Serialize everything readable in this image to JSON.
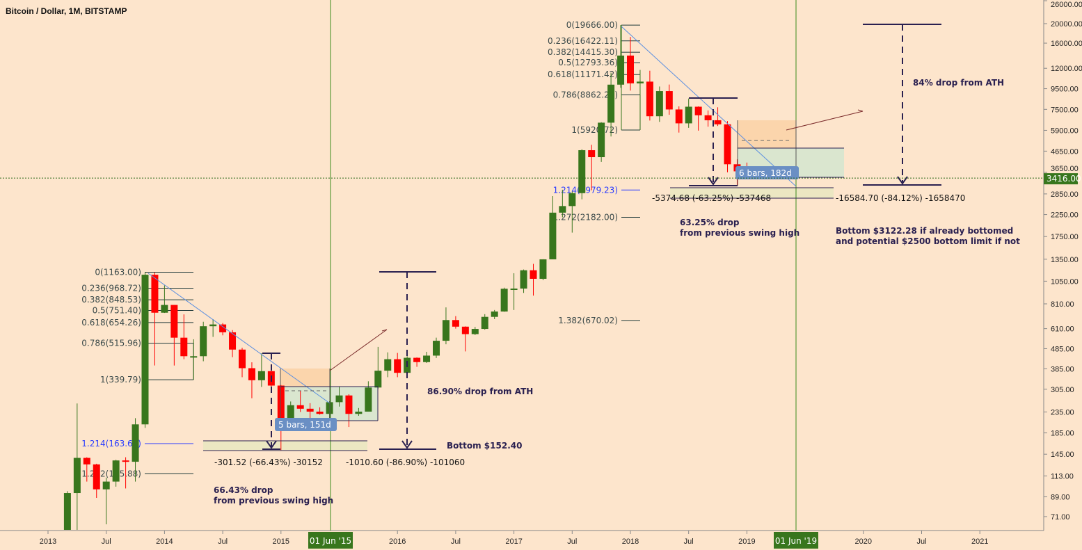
{
  "header": {
    "title": "Bitcoin / Dollar, 1M, BITSTAMP"
  },
  "chart_data": {
    "type": "candlestick",
    "title": "Bitcoin / Dollar, 1M, BITSTAMP",
    "y_scale": "log",
    "ylim": [
      60,
      27000
    ],
    "xlim": [
      "2012-11",
      "2021-12"
    ],
    "grid": false,
    "colors": {
      "up": "#38761d",
      "down": "#ff0000",
      "background": "#fde5cc",
      "price_label": "#38761d",
      "marker_line": "#3a8a1a",
      "trend": "#5b8fe0",
      "bracket": "#2a2050"
    },
    "y_ticks": [
      "26000.00",
      "20000.00",
      "16000.00",
      "12000.00",
      "9500.00",
      "7500.00",
      "5900.00",
      "4650.00",
      "3650.00",
      "2850.00",
      "2250.00",
      "1750.00",
      "1350.00",
      "1050.00",
      "810.00",
      "610.00",
      "485.00",
      "385.00",
      "305.00",
      "235.00",
      "185.00",
      "145.00",
      "113.00",
      "89.00",
      "71.00"
    ],
    "x_ticks": [
      {
        "m": 0,
        "label": "2013"
      },
      {
        "m": 6,
        "label": "Jul"
      },
      {
        "m": 12,
        "label": "2014"
      },
      {
        "m": 18,
        "label": "Jul"
      },
      {
        "m": 24,
        "label": "2015"
      },
      {
        "m": 36,
        "label": "2016"
      },
      {
        "m": 42,
        "label": "Jul"
      },
      {
        "m": 48,
        "label": "2017"
      },
      {
        "m": 54,
        "label": "Jul"
      },
      {
        "m": 60,
        "label": "2018"
      },
      {
        "m": 66,
        "label": "Jul"
      },
      {
        "m": 72,
        "label": "2019"
      },
      {
        "m": 84,
        "label": "2020"
      },
      {
        "m": 90,
        "label": "Jul"
      },
      {
        "m": 96,
        "label": "2021"
      }
    ],
    "current_price": {
      "value": 3416,
      "label": "3416.00"
    },
    "vertical_markers": [
      {
        "m": 29,
        "label": "01 Jun '15"
      },
      {
        "m": 77,
        "label": "01 Jun '19"
      }
    ],
    "candles": [
      [
        "2013-03",
        34,
        95,
        33,
        93
      ],
      [
        "2013-04",
        93,
        259,
        50,
        139
      ],
      [
        "2013-05",
        139,
        140,
        106,
        129
      ],
      [
        "2013-06",
        129,
        130,
        88,
        97
      ],
      [
        "2013-07",
        97,
        111,
        65,
        106
      ],
      [
        "2013-08",
        106,
        136,
        100,
        135
      ],
      [
        "2013-09",
        135,
        140,
        98,
        133
      ],
      [
        "2013-10",
        133,
        219,
        106,
        204
      ],
      [
        "2013-11",
        204,
        1163,
        196,
        1130
      ],
      [
        "2013-12",
        1130,
        1160,
        400,
        732
      ],
      [
        "2014-01",
        732,
        1000,
        730,
        800
      ],
      [
        "2014-02",
        800,
        800,
        400,
        550
      ],
      [
        "2014-03",
        550,
        718,
        430,
        445
      ],
      [
        "2014-04",
        445,
        540,
        340,
        445
      ],
      [
        "2014-05",
        445,
        660,
        420,
        627
      ],
      [
        "2014-06",
        627,
        680,
        555,
        640
      ],
      [
        "2014-07",
        640,
        650,
        565,
        585
      ],
      [
        "2014-08",
        585,
        600,
        440,
        480
      ],
      [
        "2014-09",
        480,
        490,
        350,
        388
      ],
      [
        "2014-10",
        388,
        415,
        275,
        338
      ],
      [
        "2014-11",
        338,
        460,
        313,
        375
      ],
      [
        "2014-12",
        375,
        385,
        300,
        318
      ],
      [
        "2015-01",
        318,
        320,
        152,
        218
      ],
      [
        "2015-02",
        218,
        265,
        200,
        254
      ],
      [
        "2015-03",
        254,
        300,
        235,
        244
      ],
      [
        "2015-04",
        244,
        260,
        214,
        236
      ],
      [
        "2015-05",
        236,
        248,
        228,
        230
      ],
      [
        "2015-06",
        230,
        266,
        219,
        263
      ],
      [
        "2015-07",
        263,
        315,
        250,
        284
      ],
      [
        "2015-08",
        284,
        288,
        198,
        230
      ],
      [
        "2015-09",
        230,
        246,
        225,
        236
      ],
      [
        "2015-10",
        236,
        334,
        236,
        311
      ],
      [
        "2015-11",
        311,
        495,
        305,
        377
      ],
      [
        "2015-12",
        377,
        465,
        350,
        430
      ],
      [
        "2016-01",
        430,
        462,
        350,
        368
      ],
      [
        "2016-02",
        368,
        445,
        365,
        437
      ],
      [
        "2016-03",
        437,
        439,
        394,
        416
      ],
      [
        "2016-04",
        416,
        468,
        412,
        448
      ],
      [
        "2016-05",
        448,
        550,
        436,
        531
      ],
      [
        "2016-06",
        531,
        778,
        510,
        673
      ],
      [
        "2016-07",
        673,
        704,
        610,
        624
      ],
      [
        "2016-08",
        624,
        626,
        470,
        573
      ],
      [
        "2016-09",
        573,
        622,
        567,
        608
      ],
      [
        "2016-10",
        608,
        720,
        603,
        698
      ],
      [
        "2016-11",
        698,
        755,
        680,
        742
      ],
      [
        "2016-12",
        742,
        975,
        740,
        963
      ],
      [
        "2017-01",
        963,
        1150,
        755,
        965
      ],
      [
        "2017-02",
        965,
        1200,
        918,
        1190
      ],
      [
        "2017-03",
        1190,
        1280,
        890,
        1079
      ],
      [
        "2017-04",
        1079,
        1350,
        1062,
        1348
      ],
      [
        "2017-05",
        1348,
        2780,
        1348,
        2300
      ],
      [
        "2017-06",
        2300,
        2990,
        2180,
        2480
      ],
      [
        "2017-07",
        2480,
        2930,
        1830,
        2875
      ],
      [
        "2017-08",
        2875,
        4750,
        2680,
        4700
      ],
      [
        "2017-09",
        4700,
        5000,
        2972,
        4340
      ],
      [
        "2017-10",
        4340,
        6470,
        4110,
        6440
      ],
      [
        "2017-11",
        6440,
        11400,
        5500,
        9950
      ],
      [
        "2017-12",
        9950,
        19666,
        9600,
        13880
      ],
      [
        "2018-01",
        13880,
        17170,
        9300,
        10100
      ],
      [
        "2018-02",
        10100,
        11780,
        5920,
        10300
      ],
      [
        "2018-03",
        10300,
        11670,
        6600,
        6930
      ],
      [
        "2018-04",
        6930,
        9740,
        6500,
        9240
      ],
      [
        "2018-05",
        9240,
        9960,
        7050,
        7490
      ],
      [
        "2018-06",
        7490,
        7760,
        5750,
        6390
      ],
      [
        "2018-07",
        6390,
        8490,
        6070,
        7730
      ],
      [
        "2018-08",
        7730,
        7760,
        5880,
        7010
      ],
      [
        "2018-09",
        7010,
        7410,
        6150,
        6620
      ],
      [
        "2018-10",
        6620,
        7680,
        6200,
        6320
      ],
      [
        "2018-11",
        6320,
        6550,
        3652,
        4000
      ],
      [
        "2018-12",
        4000,
        4235,
        3122,
        3690
      ],
      [
        "2019-01",
        3690,
        4080,
        3400,
        3416
      ]
    ],
    "fib_2013": [
      {
        "price": 1163.0,
        "label": "0(1163.00)"
      },
      {
        "price": 968.72,
        "label": "0.236(968.72)"
      },
      {
        "price": 848.53,
        "label": "0.382(848.53)"
      },
      {
        "price": 751.4,
        "label": "0.5(751.40)"
      },
      {
        "price": 654.26,
        "label": "0.618(654.26)"
      },
      {
        "price": 515.96,
        "label": "0.786(515.96)"
      },
      {
        "price": 339.79,
        "label": "1(339.79)"
      },
      {
        "price": 163.62,
        "label": "1.214(163.62)",
        "highlight": true
      },
      {
        "price": 115.88,
        "label": "1.272(115.88)"
      }
    ],
    "fib_2017": [
      {
        "price": 19666.0,
        "label": "0(19666.00)"
      },
      {
        "price": 16422.11,
        "label": "0.236(16422.11)"
      },
      {
        "price": 14415.3,
        "label": "0.382(14415.30)"
      },
      {
        "price": 12793.36,
        "label": "0.5(12793.36)"
      },
      {
        "price": 11171.42,
        "label": "0.618(11171.42)"
      },
      {
        "price": 8862.21,
        "label": "0.786(8862.21)"
      },
      {
        "price": 5920.72,
        "label": "1(5920.72)"
      },
      {
        "price": 2979.23,
        "label": "1.214(2979.23)",
        "highlight": true
      },
      {
        "price": 2182.0,
        "label": "1.272(2182.00)"
      },
      {
        "price": 670.02,
        "label": "1.382(670.02)"
      }
    ],
    "annotations": {
      "measure_2014": "-301.52 (-66.43%) -30152",
      "measure_2015": "-1010.60 (-86.90%) -101060",
      "measure_2018": "-5374.68 (-63.25%) -537468",
      "measure_2019": "-16584.70 (-84.12%) -1658470",
      "drop_2015_a": "66.43% drop",
      "drop_2015_b": "from previous swing high",
      "drop_ath_2015": "86.90% drop from ATH",
      "bottom_2015": "Bottom $152.40",
      "drop_2018_a": "63.25% drop",
      "drop_2018_b": "from  previous swing high",
      "drop_ath_2019": "84% drop from ATH",
      "bottom_2019_a": "Bottom $3122.28 if already bottomed",
      "bottom_2019_b": "and potential $2500 bottom limit if not",
      "bars_2015": "5 bars, 151d",
      "bars_2019": "6 bars, 182d"
    }
  }
}
